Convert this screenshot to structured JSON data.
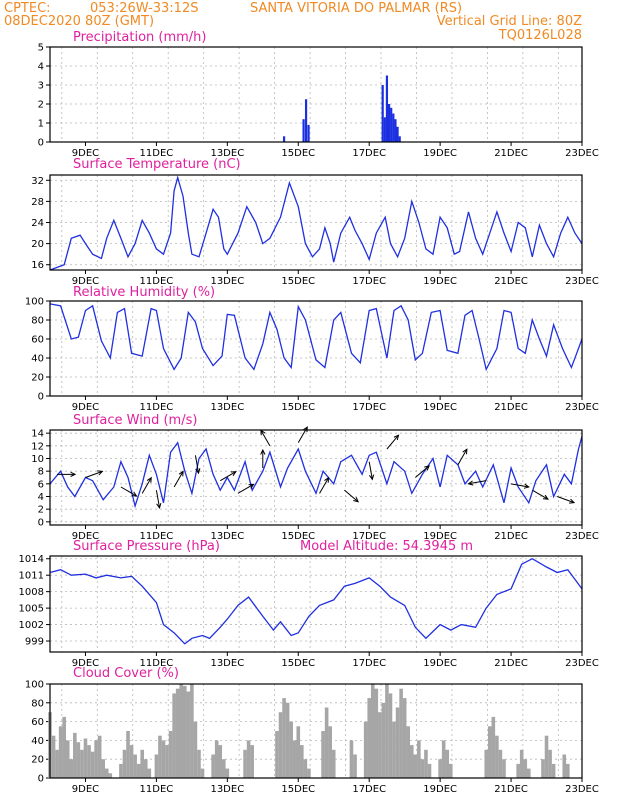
{
  "header": {
    "source": "CPTEC:",
    "coords": "053:26W-33:12S",
    "location": "SANTA VITORIA DO PALMAR (RS)",
    "run": "08DEC2020 80Z (GMT)",
    "grid_note": "Vertical Grid Line: 80Z",
    "model": "TQ0126L028"
  },
  "model_altitude": "Model Altitude: 54.3945 m",
  "x_ticks": [
    "9DEC",
    "11DEC",
    "13DEC",
    "15DEC",
    "17DEC",
    "19DEC",
    "21DEC",
    "23DEC"
  ],
  "chart_data": [
    {
      "type": "bar",
      "title": "Precipitation (mm/h)",
      "ylim": [
        0,
        5
      ],
      "yticks": [
        0,
        1,
        2,
        3,
        4,
        5
      ],
      "x_range_days": [
        8.0,
        23.0
      ],
      "bars": [
        {
          "day": 14.6,
          "value": 0.3
        },
        {
          "day": 15.15,
          "value": 1.2
        },
        {
          "day": 15.22,
          "value": 2.25
        },
        {
          "day": 15.29,
          "value": 0.9
        },
        {
          "day": 17.38,
          "value": 3.0
        },
        {
          "day": 17.44,
          "value": 1.3
        },
        {
          "day": 17.5,
          "value": 3.5
        },
        {
          "day": 17.56,
          "value": 2.0
        },
        {
          "day": 17.62,
          "value": 1.8
        },
        {
          "day": 17.68,
          "value": 1.5
        },
        {
          "day": 17.74,
          "value": 1.2
        },
        {
          "day": 17.8,
          "value": 0.8
        },
        {
          "day": 17.86,
          "value": 0.3
        }
      ]
    },
    {
      "type": "line",
      "title": "Surface Temperature (nC)",
      "ylim": [
        15,
        33
      ],
      "yticks": [
        16,
        20,
        24,
        28,
        32
      ],
      "x": [
        8.0,
        8.4,
        8.6,
        8.85,
        9.0,
        9.2,
        9.45,
        9.6,
        9.8,
        10.0,
        10.2,
        10.4,
        10.6,
        10.8,
        11.0,
        11.2,
        11.4,
        11.5,
        11.6,
        11.75,
        11.9,
        12.0,
        12.2,
        12.4,
        12.6,
        12.75,
        12.9,
        13.0,
        13.3,
        13.55,
        13.8,
        14.0,
        14.2,
        14.5,
        14.75,
        15.0,
        15.2,
        15.4,
        15.6,
        15.75,
        15.9,
        16.0,
        16.2,
        16.45,
        16.6,
        16.8,
        17.0,
        17.2,
        17.45,
        17.6,
        17.8,
        18.0,
        18.2,
        18.4,
        18.6,
        18.8,
        19.0,
        19.2,
        19.4,
        19.55,
        19.8,
        20.0,
        20.2,
        20.4,
        20.6,
        20.8,
        21.0,
        21.2,
        21.4,
        21.6,
        21.8,
        22.0,
        22.2,
        22.4,
        22.6,
        22.8,
        23.0
      ],
      "y": [
        15.0,
        16.0,
        21.0,
        21.6,
        20.0,
        18.0,
        17.2,
        21.0,
        24.4,
        21.0,
        17.5,
        20.0,
        24.4,
        22.0,
        19.0,
        18.0,
        22.0,
        30.0,
        32.5,
        29.0,
        22.0,
        18.0,
        17.5,
        22.0,
        26.5,
        25.0,
        19.0,
        18.0,
        22.0,
        27.0,
        24.0,
        20.0,
        21.0,
        25.0,
        31.5,
        27.0,
        20.0,
        17.5,
        19.0,
        23.0,
        20.0,
        16.5,
        22.0,
        25.0,
        22.5,
        20.0,
        17.0,
        22.0,
        25.0,
        20.0,
        17.5,
        21.0,
        28.0,
        24.0,
        19.0,
        18.0,
        25.0,
        23.0,
        18.0,
        18.5,
        26.0,
        21.0,
        18.0,
        22.0,
        26.0,
        22.0,
        18.5,
        24.0,
        23.0,
        17.5,
        23.5,
        20.0,
        17.5,
        22.0,
        25.0,
        22.0,
        20.0
      ]
    },
    {
      "type": "line",
      "title": "Relative Humidity (%)",
      "ylim": [
        0,
        100
      ],
      "yticks": [
        0,
        20,
        40,
        60,
        80,
        100
      ],
      "x": [
        8.0,
        8.3,
        8.6,
        8.8,
        9.0,
        9.2,
        9.45,
        9.7,
        9.9,
        10.1,
        10.3,
        10.6,
        10.85,
        11.0,
        11.2,
        11.5,
        11.7,
        11.9,
        12.1,
        12.3,
        12.6,
        12.85,
        13.0,
        13.2,
        13.5,
        13.75,
        14.0,
        14.2,
        14.4,
        14.6,
        14.8,
        15.0,
        15.2,
        15.5,
        15.75,
        16.0,
        16.2,
        16.5,
        16.75,
        17.0,
        17.2,
        17.5,
        17.7,
        17.9,
        18.1,
        18.3,
        18.5,
        18.75,
        19.0,
        19.2,
        19.5,
        19.7,
        19.9,
        20.1,
        20.3,
        20.6,
        20.8,
        21.0,
        21.2,
        21.4,
        21.6,
        21.8,
        22.0,
        22.2,
        22.45,
        22.7,
        22.85,
        23.0
      ],
      "y": [
        97.0,
        95.0,
        60.0,
        62.0,
        90.0,
        95.0,
        58.0,
        40.0,
        88.0,
        92.0,
        45.0,
        42.0,
        92.0,
        90.0,
        50.0,
        28.0,
        40.0,
        88.0,
        78.0,
        50.0,
        32.0,
        42.0,
        86.0,
        85.0,
        40.0,
        28.0,
        55.0,
        88.0,
        70.0,
        40.0,
        30.0,
        94.0,
        80.0,
        38.0,
        30.0,
        80.0,
        88.0,
        45.0,
        35.0,
        90.0,
        92.0,
        40.0,
        90.0,
        95.0,
        80.0,
        38.0,
        45.0,
        88.0,
        90.0,
        48.0,
        45.0,
        85.0,
        90.0,
        60.0,
        28.0,
        50.0,
        90.0,
        88.0,
        50.0,
        45.0,
        80.0,
        60.0,
        42.0,
        75.0,
        50.0,
        30.0,
        45.0,
        60.0
      ]
    },
    {
      "type": "line",
      "title": "Surface Wind (m/s)",
      "ylim": [
        -0.5,
        14.5
      ],
      "yticks": [
        0,
        2,
        4,
        6,
        8,
        10,
        12,
        14
      ],
      "x": [
        8.0,
        8.3,
        8.5,
        8.7,
        9.0,
        9.2,
        9.5,
        9.8,
        10.0,
        10.2,
        10.4,
        10.6,
        10.8,
        11.0,
        11.2,
        11.4,
        11.6,
        11.8,
        12.0,
        12.2,
        12.4,
        12.6,
        12.8,
        13.0,
        13.2,
        13.5,
        13.7,
        14.0,
        14.2,
        14.5,
        14.7,
        15.0,
        15.2,
        15.5,
        15.7,
        16.0,
        16.2,
        16.5,
        16.8,
        17.0,
        17.2,
        17.5,
        17.7,
        18.0,
        18.2,
        18.5,
        18.8,
        19.0,
        19.2,
        19.5,
        19.7,
        20.0,
        20.2,
        20.5,
        20.8,
        21.0,
        21.2,
        21.5,
        21.7,
        22.0,
        22.2,
        22.5,
        22.7,
        22.9,
        23.0
      ],
      "y": [
        6.0,
        8.0,
        5.5,
        4.0,
        7.0,
        6.5,
        3.5,
        5.5,
        9.5,
        7.0,
        2.5,
        6.0,
        10.5,
        7.5,
        3.0,
        11.0,
        12.5,
        8.0,
        4.5,
        10.0,
        11.5,
        7.5,
        5.0,
        7.0,
        5.0,
        9.5,
        5.0,
        8.0,
        11.0,
        5.5,
        8.5,
        11.5,
        8.0,
        4.5,
        8.0,
        6.0,
        9.5,
        10.5,
        7.5,
        10.5,
        11.0,
        6.0,
        9.5,
        8.0,
        4.5,
        7.5,
        10.0,
        5.5,
        10.5,
        9.0,
        6.0,
        8.0,
        5.5,
        9.0,
        3.0,
        8.5,
        5.5,
        3.0,
        6.5,
        9.0,
        4.0,
        7.5,
        6.0,
        11.5,
        13.5
      ],
      "arrows": [
        {
          "day": 8.2,
          "speed": 7.5,
          "angle": 0
        },
        {
          "day": 9.0,
          "speed": 7.0,
          "angle": 340
        },
        {
          "day": 10.0,
          "speed": 5.5,
          "angle": 30
        },
        {
          "day": 10.6,
          "speed": 4.5,
          "angle": 300
        },
        {
          "day": 11.0,
          "speed": 5.0,
          "angle": 80
        },
        {
          "day": 11.5,
          "speed": 5.5,
          "angle": 300
        },
        {
          "day": 12.1,
          "speed": 10.5,
          "angle": 80
        },
        {
          "day": 12.8,
          "speed": 6.5,
          "angle": 330
        },
        {
          "day": 13.3,
          "speed": 4.5,
          "angle": 330
        },
        {
          "day": 14.0,
          "speed": 8.5,
          "angle": 270
        },
        {
          "day": 14.2,
          "speed": 12.0,
          "angle": 240
        },
        {
          "day": 15.0,
          "speed": 12.5,
          "angle": 300
        },
        {
          "day": 15.6,
          "speed": 4.5,
          "angle": 300
        },
        {
          "day": 16.3,
          "speed": 5.0,
          "angle": 40
        },
        {
          "day": 17.0,
          "speed": 9.5,
          "angle": 80
        },
        {
          "day": 17.5,
          "speed": 11.5,
          "angle": 310
        },
        {
          "day": 18.3,
          "speed": 7.0,
          "angle": 320
        },
        {
          "day": 19.5,
          "speed": 9.0,
          "angle": 300
        },
        {
          "day": 20.3,
          "speed": 6.5,
          "angle": 170
        },
        {
          "day": 21.0,
          "speed": 6.0,
          "angle": 10
        },
        {
          "day": 21.6,
          "speed": 5.0,
          "angle": 30
        },
        {
          "day": 22.3,
          "speed": 4.0,
          "angle": 20
        }
      ]
    },
    {
      "type": "line",
      "title": "Surface Pressure (hPa)",
      "ylim": [
        997.0,
        1014.5
      ],
      "yticks": [
        999,
        1002,
        1005,
        1008,
        1011,
        1014
      ],
      "x": [
        8.0,
        8.3,
        8.6,
        9.0,
        9.3,
        9.6,
        10.0,
        10.3,
        10.6,
        11.0,
        11.2,
        11.5,
        11.8,
        12.0,
        12.3,
        12.5,
        12.8,
        13.0,
        13.3,
        13.6,
        14.0,
        14.3,
        14.5,
        14.8,
        15.0,
        15.3,
        15.6,
        16.0,
        16.3,
        16.6,
        17.0,
        17.3,
        17.6,
        18.0,
        18.3,
        18.6,
        19.0,
        19.3,
        19.6,
        20.0,
        20.3,
        20.6,
        21.0,
        21.3,
        21.6,
        22.0,
        22.3,
        22.6,
        23.0
      ],
      "y": [
        1011.5,
        1012.0,
        1011.0,
        1011.2,
        1010.5,
        1011.0,
        1010.5,
        1010.8,
        1009.0,
        1006.0,
        1002.0,
        1000.5,
        998.5,
        999.5,
        1000.0,
        999.5,
        1001.5,
        1003.0,
        1005.5,
        1007.0,
        1003.5,
        1001.0,
        1002.5,
        1000.0,
        1000.5,
        1003.5,
        1005.5,
        1006.5,
        1009.0,
        1009.5,
        1010.5,
        1009.0,
        1007.0,
        1005.5,
        1001.5,
        999.5,
        1002.0,
        1001.0,
        1002.0,
        1001.5,
        1005.0,
        1007.5,
        1008.5,
        1013.0,
        1014.0,
        1012.5,
        1011.5,
        1012.0,
        1008.5
      ]
    },
    {
      "type": "bar",
      "title": "Cloud Cover (%)",
      "ylim": [
        0,
        100
      ],
      "yticks": [
        0,
        20,
        40,
        60,
        80,
        100
      ],
      "x_range_days": [
        8.0,
        23.0
      ],
      "bars": [
        {
          "day": 8.0,
          "value": 70
        },
        {
          "day": 8.1,
          "value": 45
        },
        {
          "day": 8.2,
          "value": 30
        },
        {
          "day": 8.3,
          "value": 55
        },
        {
          "day": 8.4,
          "value": 65
        },
        {
          "day": 8.5,
          "value": 40
        },
        {
          "day": 8.6,
          "value": 20
        },
        {
          "day": 8.7,
          "value": 48
        },
        {
          "day": 8.8,
          "value": 38
        },
        {
          "day": 8.9,
          "value": 30
        },
        {
          "day": 9.0,
          "value": 42
        },
        {
          "day": 9.1,
          "value": 35
        },
        {
          "day": 9.2,
          "value": 28
        },
        {
          "day": 9.3,
          "value": 40
        },
        {
          "day": 9.4,
          "value": 45
        },
        {
          "day": 9.5,
          "value": 20
        },
        {
          "day": 9.6,
          "value": 10
        },
        {
          "day": 9.7,
          "value": 5
        },
        {
          "day": 10.0,
          "value": 15
        },
        {
          "day": 10.1,
          "value": 30
        },
        {
          "day": 10.2,
          "value": 50
        },
        {
          "day": 10.3,
          "value": 35
        },
        {
          "day": 10.4,
          "value": 25
        },
        {
          "day": 10.5,
          "value": 15
        },
        {
          "day": 10.6,
          "value": 30
        },
        {
          "day": 10.7,
          "value": 20
        },
        {
          "day": 10.8,
          "value": 10
        },
        {
          "day": 11.0,
          "value": 25
        },
        {
          "day": 11.1,
          "value": 45
        },
        {
          "day": 11.2,
          "value": 40
        },
        {
          "day": 11.3,
          "value": 35
        },
        {
          "day": 11.4,
          "value": 50
        },
        {
          "day": 11.5,
          "value": 90
        },
        {
          "day": 11.6,
          "value": 95
        },
        {
          "day": 11.7,
          "value": 100
        },
        {
          "day": 11.8,
          "value": 98
        },
        {
          "day": 11.9,
          "value": 92
        },
        {
          "day": 12.0,
          "value": 100
        },
        {
          "day": 12.1,
          "value": 60
        },
        {
          "day": 12.2,
          "value": 30
        },
        {
          "day": 12.3,
          "value": 10
        },
        {
          "day": 12.6,
          "value": 25
        },
        {
          "day": 12.7,
          "value": 40
        },
        {
          "day": 12.8,
          "value": 35
        },
        {
          "day": 12.9,
          "value": 20
        },
        {
          "day": 13.0,
          "value": 10
        },
        {
          "day": 13.5,
          "value": 30
        },
        {
          "day": 13.6,
          "value": 40
        },
        {
          "day": 13.7,
          "value": 35
        },
        {
          "day": 14.4,
          "value": 50
        },
        {
          "day": 14.5,
          "value": 70
        },
        {
          "day": 14.6,
          "value": 85
        },
        {
          "day": 14.7,
          "value": 80
        },
        {
          "day": 14.8,
          "value": 60
        },
        {
          "day": 14.9,
          "value": 40
        },
        {
          "day": 15.0,
          "value": 55
        },
        {
          "day": 15.1,
          "value": 35
        },
        {
          "day": 15.2,
          "value": 20
        },
        {
          "day": 15.3,
          "value": 10
        },
        {
          "day": 15.7,
          "value": 50
        },
        {
          "day": 15.8,
          "value": 75
        },
        {
          "day": 15.9,
          "value": 55
        },
        {
          "day": 16.0,
          "value": 30
        },
        {
          "day": 16.5,
          "value": 40
        },
        {
          "day": 16.6,
          "value": 25
        },
        {
          "day": 16.9,
          "value": 60
        },
        {
          "day": 17.0,
          "value": 85
        },
        {
          "day": 17.1,
          "value": 100
        },
        {
          "day": 17.2,
          "value": 95
        },
        {
          "day": 17.3,
          "value": 70
        },
        {
          "day": 17.4,
          "value": 80
        },
        {
          "day": 17.5,
          "value": 100
        },
        {
          "day": 17.6,
          "value": 90
        },
        {
          "day": 17.7,
          "value": 60
        },
        {
          "day": 17.8,
          "value": 75
        },
        {
          "day": 17.9,
          "value": 95
        },
        {
          "day": 18.0,
          "value": 85
        },
        {
          "day": 18.1,
          "value": 55
        },
        {
          "day": 18.2,
          "value": 35
        },
        {
          "day": 18.3,
          "value": 25
        },
        {
          "day": 18.4,
          "value": 40
        },
        {
          "day": 18.5,
          "value": 20
        },
        {
          "day": 18.6,
          "value": 30
        },
        {
          "day": 18.7,
          "value": 15
        },
        {
          "day": 19.0,
          "value": 20
        },
        {
          "day": 19.1,
          "value": 40
        },
        {
          "day": 19.2,
          "value": 30
        },
        {
          "day": 19.3,
          "value": 15
        },
        {
          "day": 20.3,
          "value": 30
        },
        {
          "day": 20.4,
          "value": 55
        },
        {
          "day": 20.5,
          "value": 65
        },
        {
          "day": 20.6,
          "value": 45
        },
        {
          "day": 20.7,
          "value": 30
        },
        {
          "day": 20.8,
          "value": 20
        },
        {
          "day": 21.2,
          "value": 15
        },
        {
          "day": 21.3,
          "value": 30
        },
        {
          "day": 21.4,
          "value": 20
        },
        {
          "day": 21.5,
          "value": 10
        },
        {
          "day": 21.9,
          "value": 20
        },
        {
          "day": 22.0,
          "value": 45
        },
        {
          "day": 22.1,
          "value": 30
        },
        {
          "day": 22.2,
          "value": 15
        },
        {
          "day": 22.5,
          "value": 25
        },
        {
          "day": 22.6,
          "value": 15
        }
      ]
    }
  ]
}
